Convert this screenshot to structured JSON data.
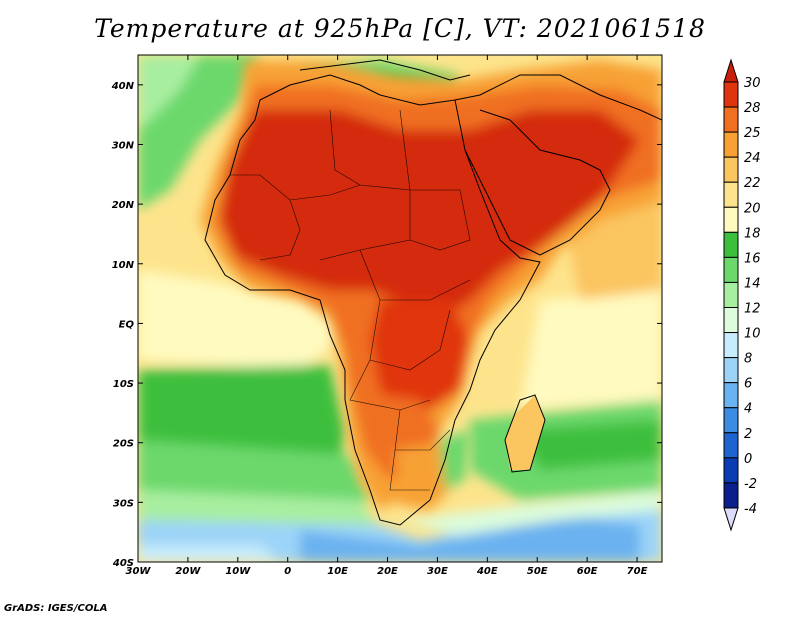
{
  "title": "Temperature at 925hPa [C], VT: 2021061518",
  "credit": "GrADS: IGES/COLA",
  "map": {
    "lon_ticks": [
      "30W",
      "20W",
      "10W",
      "0",
      "10E",
      "20E",
      "30E",
      "40E",
      "50E",
      "60E",
      "70E"
    ],
    "lat_ticks": [
      "40N",
      "30N",
      "20N",
      "10N",
      "EQ",
      "10S",
      "20S",
      "30S",
      "40S"
    ],
    "lon_range": [
      -30,
      75
    ],
    "lat_range": [
      -40,
      45
    ]
  },
  "colorbar": {
    "labels": [
      "30",
      "28",
      "25",
      "24",
      "22",
      "20",
      "18",
      "16",
      "14",
      "12",
      "10",
      "8",
      "6",
      "4",
      "2",
      "0",
      "-2",
      "-4"
    ],
    "colors": [
      "#e0340f",
      "#f07020",
      "#f7a134",
      "#fbc560",
      "#fde48c",
      "#fffac0",
      "#3cbf3c",
      "#6cd86c",
      "#a8eea0",
      "#dcfcdc",
      "#c8ecfc",
      "#9cd4f8",
      "#6ab2f0",
      "#3c8ce4",
      "#1e64d0",
      "#0a3cb4",
      "#0a1e8c",
      "#dcdcfc"
    ],
    "top_color": "#c81e0a"
  },
  "colors": {
    "ocean_warm": "#fde48c",
    "ocean_mild": "#fffac0",
    "ocean_cool": "#6cd86c",
    "ocean_cold": "#9cd4f8",
    "land_hot": "#d42a10",
    "land_warm": "#f07020",
    "land_mild": "#f7a134"
  }
}
